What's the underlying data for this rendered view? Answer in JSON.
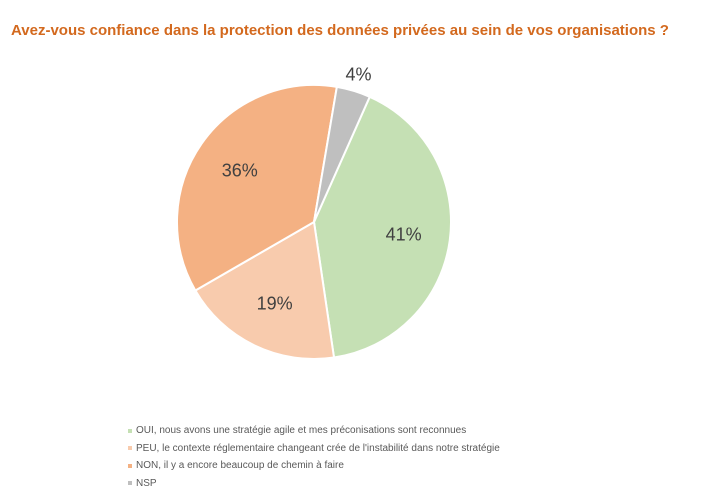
{
  "title": "Avez-vous confiance dans la protection des données privées au sein de vos organisations ?",
  "colors": {
    "title": "#d3691e",
    "label_text": "#404040",
    "legend_text": "#595959"
  },
  "chart_data": {
    "type": "pie",
    "title": "Avez-vous confiance dans la protection des données privées au sein de vos organisations ?",
    "legend_position": "bottom-left",
    "slices": [
      {
        "label": "OUI, nous avons une stratégie agile et mes préconisations sont reconnues",
        "value": 41,
        "display": "41%",
        "color": "#c5e0b4"
      },
      {
        "label": "PEU, le contexte réglementaire changeant crée de l'instabilité dans notre stratégie",
        "value": 19,
        "display": "19%",
        "color": "#f8cbad"
      },
      {
        "label": "NON, il y a encore beaucoup de chemin à faire",
        "value": 36,
        "display": "36%",
        "color": "#f4b183"
      },
      {
        "label": "NSP",
        "value": 4,
        "display": "4%",
        "color": "#bfbfbf"
      }
    ]
  }
}
